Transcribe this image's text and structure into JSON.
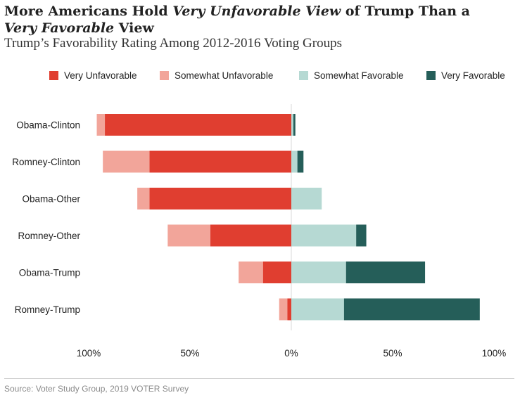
{
  "title_parts": [
    "More Americans Hold ",
    "Very Unfavorable View",
    " of Trump Than a ",
    "Very Favorable",
    " View"
  ],
  "subtitle": "Trump’s Favorability Rating Among 2012-2016 Voting Groups",
  "source": "Source: Voter Study Group, 2019 VOTER Survey",
  "chart_data": {
    "type": "bar",
    "orientation": "horizontal",
    "stacked": "diverging",
    "categories": [
      "Obama-Clinton",
      "Romney-Clinton",
      "Obama-Other",
      "Romney-Other",
      "Obama-Trump",
      "Romney-Trump"
    ],
    "series": [
      {
        "name": "Very Unfavorable",
        "side": "negative",
        "color": "#e03e30",
        "values": [
          92,
          70,
          70,
          40,
          14,
          2
        ]
      },
      {
        "name": "Somewhat Unfavorable",
        "side": "negative",
        "color": "#f2a59a",
        "values": [
          4,
          23,
          6,
          21,
          12,
          4
        ]
      },
      {
        "name": "Somewhat Favorable",
        "side": "positive",
        "color": "#b6d9d3",
        "values": [
          1,
          3,
          15,
          32,
          27,
          26
        ]
      },
      {
        "name": "Very Favorable",
        "side": "positive",
        "color": "#255e59",
        "values": [
          1,
          3,
          0,
          5,
          39,
          67
        ]
      }
    ],
    "xlim": [
      -100,
      100
    ],
    "xticks": [
      "100%",
      "50%",
      "0%",
      "50%",
      "100%"
    ],
    "tick_values": [
      -100,
      -50,
      0,
      50,
      100
    ],
    "legend_position": "top"
  }
}
